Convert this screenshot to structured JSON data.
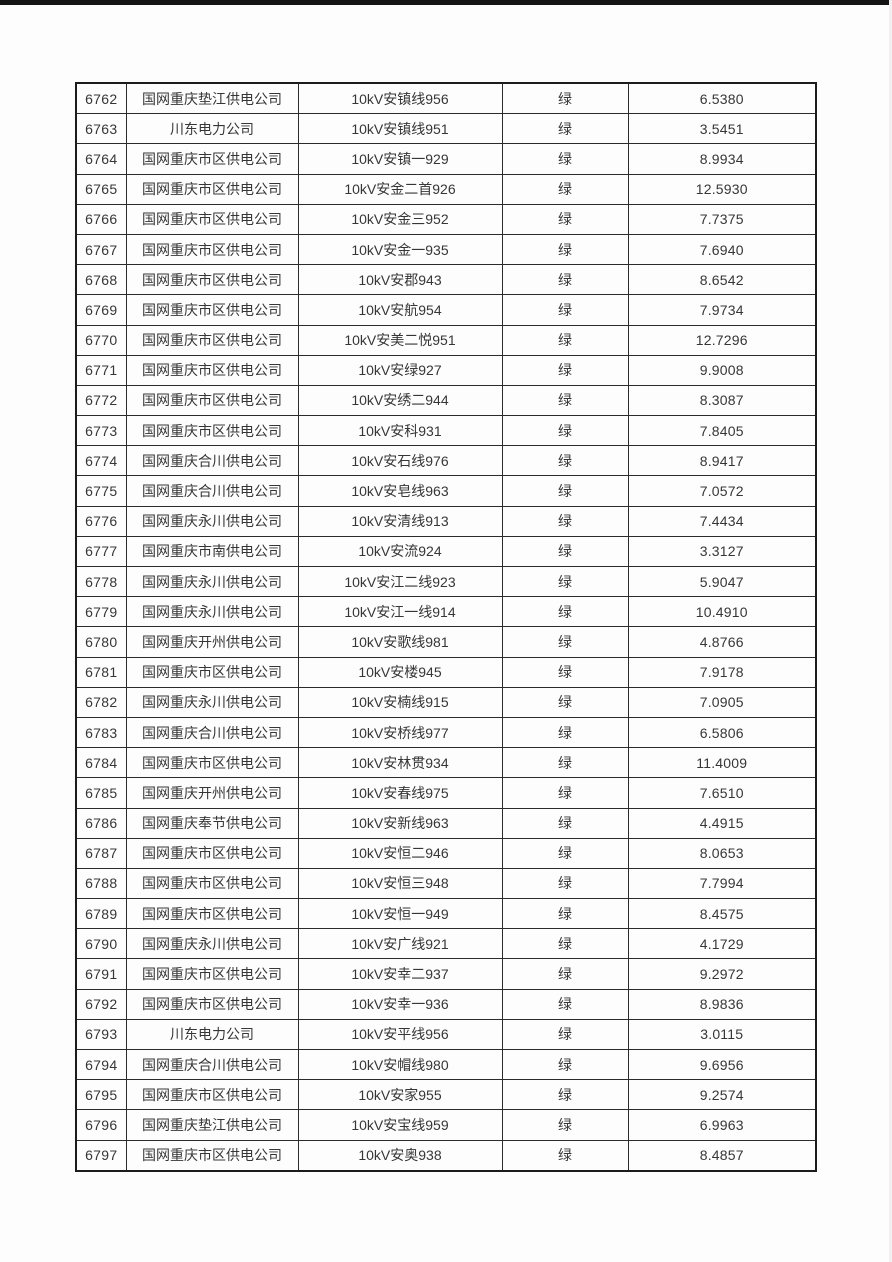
{
  "page": {
    "background_color": "#fdfdfd",
    "top_edge_color": "#141414",
    "text_color": "#363636",
    "border_color": "#2b2b2b"
  },
  "table": {
    "rows": [
      {
        "id": "6762",
        "company": "国网重庆垫江供电公司",
        "line": "10kV安镇线956",
        "status": "绿",
        "value": "6.5380"
      },
      {
        "id": "6763",
        "company": "川东电力公司",
        "line": "10kV安镇线951",
        "status": "绿",
        "value": "3.5451"
      },
      {
        "id": "6764",
        "company": "国网重庆市区供电公司",
        "line": "10kV安镇一929",
        "status": "绿",
        "value": "8.9934"
      },
      {
        "id": "6765",
        "company": "国网重庆市区供电公司",
        "line": "10kV安金二首926",
        "status": "绿",
        "value": "12.5930"
      },
      {
        "id": "6766",
        "company": "国网重庆市区供电公司",
        "line": "10kV安金三952",
        "status": "绿",
        "value": "7.7375"
      },
      {
        "id": "6767",
        "company": "国网重庆市区供电公司",
        "line": "10kV安金一935",
        "status": "绿",
        "value": "7.6940"
      },
      {
        "id": "6768",
        "company": "国网重庆市区供电公司",
        "line": "10kV安郡943",
        "status": "绿",
        "value": "8.6542"
      },
      {
        "id": "6769",
        "company": "国网重庆市区供电公司",
        "line": "10kV安航954",
        "status": "绿",
        "value": "7.9734"
      },
      {
        "id": "6770",
        "company": "国网重庆市区供电公司",
        "line": "10kV安美二悦951",
        "status": "绿",
        "value": "12.7296"
      },
      {
        "id": "6771",
        "company": "国网重庆市区供电公司",
        "line": "10kV安绿927",
        "status": "绿",
        "value": "9.9008"
      },
      {
        "id": "6772",
        "company": "国网重庆市区供电公司",
        "line": "10kV安绣二944",
        "status": "绿",
        "value": "8.3087"
      },
      {
        "id": "6773",
        "company": "国网重庆市区供电公司",
        "line": "10kV安科931",
        "status": "绿",
        "value": "7.8405"
      },
      {
        "id": "6774",
        "company": "国网重庆合川供电公司",
        "line": "10kV安石线976",
        "status": "绿",
        "value": "8.9417"
      },
      {
        "id": "6775",
        "company": "国网重庆合川供电公司",
        "line": "10kV安皂线963",
        "status": "绿",
        "value": "7.0572"
      },
      {
        "id": "6776",
        "company": "国网重庆永川供电公司",
        "line": "10kV安清线913",
        "status": "绿",
        "value": "7.4434"
      },
      {
        "id": "6777",
        "company": "国网重庆市南供电公司",
        "line": "10kV安流924",
        "status": "绿",
        "value": "3.3127"
      },
      {
        "id": "6778",
        "company": "国网重庆永川供电公司",
        "line": "10kV安江二线923",
        "status": "绿",
        "value": "5.9047"
      },
      {
        "id": "6779",
        "company": "国网重庆永川供电公司",
        "line": "10kV安江一线914",
        "status": "绿",
        "value": "10.4910"
      },
      {
        "id": "6780",
        "company": "国网重庆开州供电公司",
        "line": "10kV安歌线981",
        "status": "绿",
        "value": "4.8766"
      },
      {
        "id": "6781",
        "company": "国网重庆市区供电公司",
        "line": "10kV安楼945",
        "status": "绿",
        "value": "7.9178"
      },
      {
        "id": "6782",
        "company": "国网重庆永川供电公司",
        "line": "10kV安楠线915",
        "status": "绿",
        "value": "7.0905"
      },
      {
        "id": "6783",
        "company": "国网重庆合川供电公司",
        "line": "10kV安桥线977",
        "status": "绿",
        "value": "6.5806"
      },
      {
        "id": "6784",
        "company": "国网重庆市区供电公司",
        "line": "10kV安林贯934",
        "status": "绿",
        "value": "11.4009"
      },
      {
        "id": "6785",
        "company": "国网重庆开州供电公司",
        "line": "10kV安春线975",
        "status": "绿",
        "value": "7.6510"
      },
      {
        "id": "6786",
        "company": "国网重庆奉节供电公司",
        "line": "10kV安新线963",
        "status": "绿",
        "value": "4.4915"
      },
      {
        "id": "6787",
        "company": "国网重庆市区供电公司",
        "line": "10kV安恒二946",
        "status": "绿",
        "value": "8.0653"
      },
      {
        "id": "6788",
        "company": "国网重庆市区供电公司",
        "line": "10kV安恒三948",
        "status": "绿",
        "value": "7.7994"
      },
      {
        "id": "6789",
        "company": "国网重庆市区供电公司",
        "line": "10kV安恒一949",
        "status": "绿",
        "value": "8.4575"
      },
      {
        "id": "6790",
        "company": "国网重庆永川供电公司",
        "line": "10kV安广线921",
        "status": "绿",
        "value": "4.1729"
      },
      {
        "id": "6791",
        "company": "国网重庆市区供电公司",
        "line": "10kV安幸二937",
        "status": "绿",
        "value": "9.2972"
      },
      {
        "id": "6792",
        "company": "国网重庆市区供电公司",
        "line": "10kV安幸一936",
        "status": "绿",
        "value": "8.9836"
      },
      {
        "id": "6793",
        "company": "川东电力公司",
        "line": "10kV安平线956",
        "status": "绿",
        "value": "3.0115"
      },
      {
        "id": "6794",
        "company": "国网重庆合川供电公司",
        "line": "10kV安帽线980",
        "status": "绿",
        "value": "9.6956"
      },
      {
        "id": "6795",
        "company": "国网重庆市区供电公司",
        "line": "10kV安家955",
        "status": "绿",
        "value": "9.2574"
      },
      {
        "id": "6796",
        "company": "国网重庆垫江供电公司",
        "line": "10kV安宝线959",
        "status": "绿",
        "value": "6.9963"
      },
      {
        "id": "6797",
        "company": "国网重庆市区供电公司",
        "line": "10kV安奥938",
        "status": "绿",
        "value": "8.4857"
      }
    ]
  }
}
